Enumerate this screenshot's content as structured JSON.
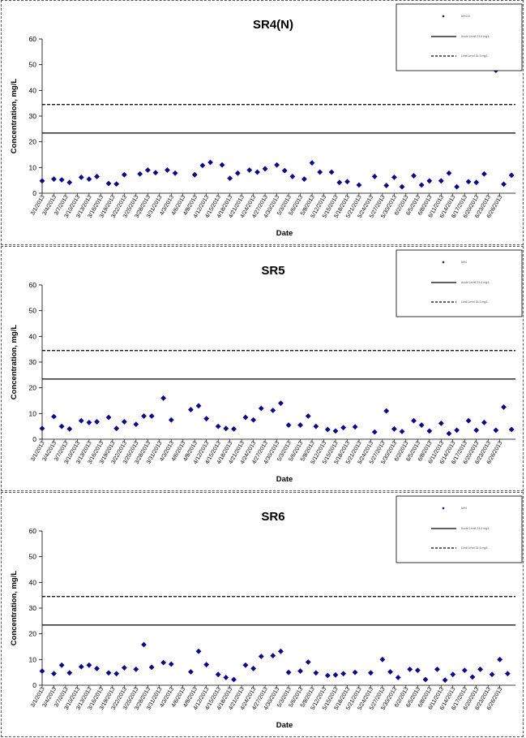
{
  "colors": {
    "marker": "#0a0a8a",
    "line": "#000000",
    "frame": "#555555"
  },
  "x_dates": [
    "3/1/2013",
    "3/4/2013",
    "3/7/2013",
    "3/10/2013",
    "3/13/2013",
    "3/16/2013",
    "3/19/2013",
    "3/22/2013",
    "3/25/2013",
    "3/28/2013",
    "3/31/2013",
    "4/3/2013",
    "4/6/2013",
    "4/9/2013",
    "4/12/2013",
    "4/15/2013",
    "4/18/2013",
    "4/21/2013",
    "4/24/2013",
    "4/27/2013",
    "4/30/2013",
    "5/3/2013",
    "5/6/2013",
    "5/9/2013",
    "5/12/2013",
    "5/15/2013",
    "5/18/2013",
    "5/21/2013",
    "5/24/2013",
    "5/27/2013",
    "5/30/2013",
    "6/2/2013",
    "6/5/2013",
    "6/8/2013",
    "6/11/2013",
    "6/14/2013",
    "6/17/2013",
    "6/20/2013",
    "6/23/2013",
    "6/26/2013"
  ],
  "chart_data": [
    {
      "type": "scatter",
      "title": "SR4(N)",
      "xlabel": "Date",
      "ylabel": "Concentration, mg/L",
      "ylim": [
        0,
        60
      ],
      "yticks": [
        0,
        10,
        20,
        30,
        40,
        50,
        60
      ],
      "xticks": [
        "3/1/2013",
        "3/4/2013",
        "3/7/2013",
        "3/10/2013",
        "3/13/2013",
        "3/16/2013",
        "3/19/2013",
        "3/22/2013",
        "3/25/2013",
        "3/28/2013",
        "3/31/2013",
        "4/3/2013",
        "4/6/2013",
        "4/9/2013",
        "4/12/2013",
        "4/15/2013",
        "4/18/2013",
        "4/21/2013",
        "4/24/2013",
        "4/27/2013",
        "4/30/2013",
        "5/3/2013",
        "5/6/2013",
        "5/9/2013",
        "5/12/2013",
        "5/15/2013",
        "5/18/2013",
        "5/21/2013",
        "5/24/2013",
        "5/27/2013",
        "5/30/2013",
        "6/2/2013",
        "6/5/2013",
        "6/8/2013",
        "6/11/2013",
        "6/14/2013",
        "6/17/2013",
        "6/20/2013",
        "6/23/2013",
        "6/26/2013"
      ],
      "grid": false,
      "legend": "top-right",
      "legend_entries": [
        "NH4-N",
        "Acute Level 23.4 mg/L",
        "Limit Level 34.5 mg/L"
      ],
      "reference_lines": [
        {
          "name": "Acute Level 23.4 mg/L",
          "value": 23.4,
          "style": "solid"
        },
        {
          "name": "Limit Level 34.5 mg/L",
          "value": 34.5,
          "style": "dashed"
        }
      ],
      "series": [
        {
          "name": "NH4-N",
          "points": [
            [
              "3/1/2013",
              4.8
            ],
            [
              "3/4/2013",
              5.5
            ],
            [
              "3/6/2013",
              5.2
            ],
            [
              "3/8/2013",
              4.2
            ],
            [
              "3/11/2013",
              6.2
            ],
            [
              "3/13/2013",
              5.5
            ],
            [
              "3/15/2013",
              6.5
            ],
            [
              "3/18/2013",
              3.8
            ],
            [
              "3/20/2013",
              3.6
            ],
            [
              "3/22/2013",
              7.2
            ],
            [
              "3/26/2013",
              7.5
            ],
            [
              "3/28/2013",
              9.0
            ],
            [
              "3/30/2013",
              8.0
            ],
            [
              "4/2/2013",
              9.0
            ],
            [
              "4/4/2013",
              7.8
            ],
            [
              "4/9/2013",
              7.2
            ],
            [
              "4/11/2013",
              10.8
            ],
            [
              "4/13/2013",
              12.0
            ],
            [
              "4/16/2013",
              11.0
            ],
            [
              "4/18/2013",
              5.8
            ],
            [
              "4/20/2013",
              7.8
            ],
            [
              "4/23/2013",
              9.0
            ],
            [
              "4/25/2013",
              8.2
            ],
            [
              "4/27/2013",
              9.5
            ],
            [
              "4/30/2013",
              11.0
            ],
            [
              "5/2/2013",
              8.8
            ],
            [
              "5/4/2013",
              6.5
            ],
            [
              "5/7/2013",
              5.5
            ],
            [
              "5/9/2013",
              11.8
            ],
            [
              "5/11/2013",
              8.2
            ],
            [
              "5/14/2013",
              8.2
            ],
            [
              "5/16/2013",
              4.2
            ],
            [
              "5/18/2013",
              4.5
            ],
            [
              "5/21/2013",
              3.2
            ],
            [
              "5/25/2013",
              6.5
            ],
            [
              "5/28/2013",
              3.0
            ],
            [
              "5/30/2013",
              6.2
            ],
            [
              "6/1/2013",
              2.5
            ],
            [
              "6/4/2013",
              6.8
            ],
            [
              "6/6/2013",
              3.2
            ],
            [
              "6/8/2013",
              4.8
            ],
            [
              "6/11/2013",
              4.8
            ],
            [
              "6/13/2013",
              7.8
            ],
            [
              "6/15/2013",
              2.5
            ],
            [
              "6/18/2013",
              4.5
            ],
            [
              "6/20/2013",
              4.2
            ],
            [
              "6/22/2013",
              7.5
            ],
            [
              "6/25/2013",
              47.8
            ],
            [
              "6/27/2013",
              3.5
            ],
            [
              "6/29/2013",
              7.0
            ]
          ]
        }
      ]
    },
    {
      "type": "scatter",
      "title": "SR5",
      "xlabel": "Date",
      "ylabel": "Concentration, mg/L",
      "ylim": [
        0,
        60
      ],
      "yticks": [
        0,
        10,
        20,
        30,
        40,
        50,
        60
      ],
      "xticks": [
        "3/1/2013",
        "3/4/2013",
        "3/7/2013",
        "3/10/2013",
        "3/13/2013",
        "3/16/2013",
        "3/19/2013",
        "3/22/2013",
        "3/25/2013",
        "3/28/2013",
        "3/31/2013",
        "4/3/2013",
        "4/6/2013",
        "4/9/2013",
        "4/12/2013",
        "4/15/2013",
        "4/18/2013",
        "4/21/2013",
        "4/24/2013",
        "4/27/2013",
        "4/30/2013",
        "5/3/2013",
        "5/6/2013",
        "5/9/2013",
        "5/12/2013",
        "5/15/2013",
        "5/18/2013",
        "5/21/2013",
        "5/24/2013",
        "5/27/2013",
        "5/30/2013",
        "6/2/2013",
        "6/5/2013",
        "6/8/2013",
        "6/11/2013",
        "6/14/2013",
        "6/17/2013",
        "6/20/2013",
        "6/23/2013",
        "6/26/2013"
      ],
      "grid": false,
      "legend": "top-right",
      "legend_entries": [
        "NH4",
        "Acute Level 23.4 mg/L",
        "Limit Level 34.5 mg/L"
      ],
      "reference_lines": [
        {
          "name": "Acute Level 23.4 mg/L",
          "value": 23.4,
          "style": "solid"
        },
        {
          "name": "Limit Level 34.5 mg/L",
          "value": 34.5,
          "style": "dashed"
        }
      ],
      "series": [
        {
          "name": "NH4",
          "points": [
            [
              "3/1/2013",
              4.2
            ],
            [
              "3/4/2013",
              8.8
            ],
            [
              "3/6/2013",
              5.0
            ],
            [
              "3/8/2013",
              4.0
            ],
            [
              "3/11/2013",
              7.2
            ],
            [
              "3/13/2013",
              6.5
            ],
            [
              "3/15/2013",
              6.8
            ],
            [
              "3/18/2013",
              8.5
            ],
            [
              "3/20/2013",
              4.2
            ],
            [
              "3/22/2013",
              6.8
            ],
            [
              "3/25/2013",
              5.8
            ],
            [
              "3/27/2013",
              9.0
            ],
            [
              "3/29/2013",
              9.0
            ],
            [
              "4/1/2013",
              16.0
            ],
            [
              "4/3/2013",
              7.5
            ],
            [
              "4/8/2013",
              11.5
            ],
            [
              "4/10/2013",
              13.0
            ],
            [
              "4/12/2013",
              8.0
            ],
            [
              "4/15/2013",
              5.0
            ],
            [
              "4/17/2013",
              4.2
            ],
            [
              "4/19/2013",
              4.0
            ],
            [
              "4/22/2013",
              8.5
            ],
            [
              "4/24/2013",
              7.5
            ],
            [
              "4/26/2013",
              12.0
            ],
            [
              "4/29/2013",
              11.2
            ],
            [
              "5/1/2013",
              14.0
            ],
            [
              "5/3/2013",
              5.5
            ],
            [
              "5/6/2013",
              5.5
            ],
            [
              "5/8/2013",
              9.0
            ],
            [
              "5/10/2013",
              5.0
            ],
            [
              "5/13/2013",
              3.8
            ],
            [
              "5/15/2013",
              3.2
            ],
            [
              "5/17/2013",
              4.5
            ],
            [
              "5/20/2013",
              4.8
            ],
            [
              "5/25/2013",
              2.8
            ],
            [
              "5/28/2013",
              11.0
            ],
            [
              "5/30/2013",
              4.0
            ],
            [
              "6/1/2013",
              3.0
            ],
            [
              "6/4/2013",
              7.2
            ],
            [
              "6/6/2013",
              5.5
            ],
            [
              "6/8/2013",
              3.2
            ],
            [
              "6/11/2013",
              6.2
            ],
            [
              "6/13/2013",
              2.2
            ],
            [
              "6/15/2013",
              3.5
            ],
            [
              "6/18/2013",
              7.2
            ],
            [
              "6/20/2013",
              3.5
            ],
            [
              "6/22/2013",
              6.5
            ],
            [
              "6/25/2013",
              3.5
            ],
            [
              "6/27/2013",
              12.5
            ],
            [
              "6/29/2013",
              3.8
            ]
          ]
        }
      ]
    },
    {
      "type": "scatter",
      "title": "SR6",
      "xlabel": "Date",
      "ylabel": "Concentration, mg/L",
      "ylim": [
        0,
        60
      ],
      "yticks": [
        0,
        10,
        20,
        30,
        40,
        50,
        60
      ],
      "xticks": [
        "3/1/2013",
        "3/4/2013",
        "3/7/2013",
        "3/10/2013",
        "3/13/2013",
        "3/16/2013",
        "3/19/2013",
        "3/22/2013",
        "3/25/2013",
        "3/28/2013",
        "3/31/2013",
        "4/3/2013",
        "4/6/2013",
        "4/9/2013",
        "4/12/2013",
        "4/15/2013",
        "4/18/2013",
        "4/21/2013",
        "4/24/2013",
        "4/27/2013",
        "4/30/2013",
        "5/3/2013",
        "5/6/2013",
        "5/9/2013",
        "5/12/2013",
        "5/15/2013",
        "5/18/2013",
        "5/21/2013",
        "5/24/2013",
        "5/27/2013",
        "5/30/2013",
        "6/2/2013",
        "6/5/2013",
        "6/8/2013",
        "6/11/2013",
        "6/14/2013",
        "6/17/2013",
        "6/20/2013",
        "6/23/2013",
        "6/26/2013"
      ],
      "grid": false,
      "legend": "top-right",
      "legend_entries": [
        "NH4",
        "Acute Level 23.4 mg/L",
        "Limit Level 34.5 mg/L"
      ],
      "reference_lines": [
        {
          "name": "Acute Level 23.4 mg/L",
          "value": 23.4,
          "style": "solid"
        },
        {
          "name": "Limit Level 34.5 mg/L",
          "value": 34.5,
          "style": "dashed"
        }
      ],
      "series": [
        {
          "name": "NH4",
          "points": [
            [
              "3/1/2013",
              5.5
            ],
            [
              "3/4/2013",
              4.5
            ],
            [
              "3/6/2013",
              7.8
            ],
            [
              "3/8/2013",
              4.8
            ],
            [
              "3/11/2013",
              7.2
            ],
            [
              "3/13/2013",
              7.8
            ],
            [
              "3/15/2013",
              6.5
            ],
            [
              "3/18/2013",
              4.8
            ],
            [
              "3/20/2013",
              4.5
            ],
            [
              "3/22/2013",
              6.8
            ],
            [
              "3/25/2013",
              6.2
            ],
            [
              "3/27/2013",
              15.8
            ],
            [
              "3/29/2013",
              7.0
            ],
            [
              "4/1/2013",
              8.8
            ],
            [
              "4/3/2013",
              8.2
            ],
            [
              "4/8/2013",
              5.2
            ],
            [
              "4/10/2013",
              13.2
            ],
            [
              "4/12/2013",
              8.0
            ],
            [
              "4/15/2013",
              4.2
            ],
            [
              "4/17/2013",
              3.0
            ],
            [
              "4/19/2013",
              2.2
            ],
            [
              "4/22/2013",
              7.8
            ],
            [
              "4/24/2013",
              6.5
            ],
            [
              "4/26/2013",
              11.2
            ],
            [
              "4/29/2013",
              11.5
            ],
            [
              "5/1/2013",
              13.2
            ],
            [
              "5/3/2013",
              5.0
            ],
            [
              "5/6/2013",
              5.5
            ],
            [
              "5/8/2013",
              9.0
            ],
            [
              "5/10/2013",
              4.8
            ],
            [
              "5/13/2013",
              3.8
            ],
            [
              "5/15/2013",
              4.0
            ],
            [
              "5/17/2013",
              4.5
            ],
            [
              "5/20/2013",
              5.0
            ],
            [
              "5/24/2013",
              4.8
            ],
            [
              "5/27/2013",
              10.0
            ],
            [
              "5/29/2013",
              5.2
            ],
            [
              "5/31/2013",
              3.0
            ],
            [
              "6/3/2013",
              6.2
            ],
            [
              "6/5/2013",
              5.8
            ],
            [
              "6/7/2013",
              2.2
            ],
            [
              "6/10/2013",
              6.2
            ],
            [
              "6/12/2013",
              2.0
            ],
            [
              "6/14/2013",
              4.2
            ],
            [
              "6/17/2013",
              5.8
            ],
            [
              "6/19/2013",
              3.2
            ],
            [
              "6/21/2013",
              6.2
            ],
            [
              "6/24/2013",
              4.2
            ],
            [
              "6/26/2013",
              10.0
            ],
            [
              "6/28/2013",
              4.5
            ]
          ]
        }
      ]
    }
  ]
}
